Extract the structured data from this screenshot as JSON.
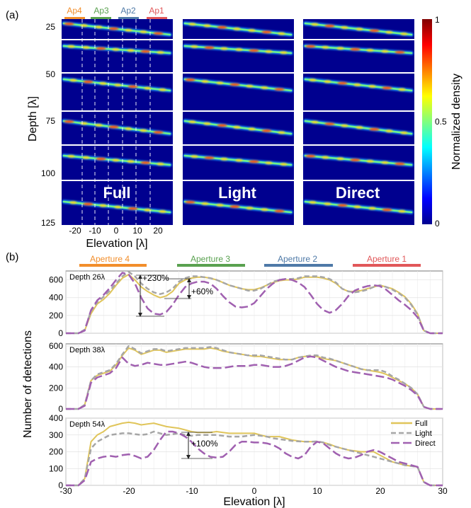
{
  "panel_a": {
    "label": "(a)",
    "ylabel": "Depth [λ]",
    "xlabel": "Elevation [λ]",
    "depth_ticks": [
      "25",
      "50",
      "75",
      "100",
      "125"
    ],
    "elev_ticks": [
      "-20",
      "-10",
      "0",
      "10",
      "20"
    ],
    "aperture_tags": [
      {
        "label": "Ap4",
        "color": "#f28e2b"
      },
      {
        "label": "Ap3",
        "color": "#59a14f"
      },
      {
        "label": "Ap2",
        "color": "#4e79a7"
      },
      {
        "label": "Ap1",
        "color": "#e15759"
      }
    ],
    "methods": [
      "Full",
      "Light",
      "Direct"
    ],
    "colorbar": {
      "label": "Normalized density",
      "ticks": [
        "1",
        "0.5",
        "0"
      ],
      "colormap": "jet"
    }
  },
  "panel_b": {
    "label": "(b)",
    "ylabel": "Number of detections",
    "xlabel": "Elevation [λ]",
    "apertures": [
      {
        "label": "Aperture 4",
        "color": "#f28e2b",
        "range": [
          -26,
          -15
        ]
      },
      {
        "label": "Aperture 3",
        "color": "#59a14f",
        "range": [
          -11,
          0
        ]
      },
      {
        "label": "Aperture 2",
        "color": "#4e79a7",
        "range": [
          1,
          12
        ]
      },
      {
        "label": "Aperture 1",
        "color": "#e15759",
        "range": [
          15,
          26
        ]
      }
    ],
    "legend": [
      {
        "name": "Full",
        "color": "#e0c55a",
        "dash": "solid"
      },
      {
        "name": "Light",
        "color": "#a6a6a6",
        "dash": "dashed"
      },
      {
        "name": "Direct",
        "color": "#a060b0",
        "dash": "longdash"
      }
    ],
    "annotations": [
      "+230%",
      "+60%",
      "+100%"
    ],
    "xticks": [
      "-30",
      "-20",
      "-10",
      "0",
      "10",
      "20",
      "30"
    ]
  },
  "chart_data": [
    {
      "type": "line",
      "title": "Depth 26λ",
      "xlabel": "Elevation [λ]",
      "ylabel": "Number of detections",
      "xlim": [
        -30,
        30
      ],
      "ylim": [
        0,
        700
      ],
      "yticks": [
        0,
        200,
        400,
        600
      ],
      "grid": true,
      "x": [
        -30,
        -28,
        -27,
        -26,
        -25,
        -24,
        -23,
        -22,
        -21,
        -20,
        -19,
        -18,
        -17,
        -16,
        -15,
        -14,
        -13,
        -12,
        -11,
        -10,
        -9,
        -8,
        -7,
        -6,
        -5,
        -4,
        -3,
        -2,
        -1,
        0,
        1,
        2,
        3,
        4,
        5,
        6,
        7,
        8,
        9,
        10,
        11,
        12,
        13,
        14,
        15,
        16,
        17,
        18,
        19,
        20,
        21,
        22,
        23,
        24,
        25,
        26,
        27,
        28,
        30
      ],
      "series": [
        {
          "name": "Full",
          "values": [
            0,
            0,
            30,
            220,
            330,
            380,
            450,
            540,
            620,
            660,
            600,
            520,
            470,
            430,
            400,
            420,
            470,
            560,
            600,
            620,
            630,
            630,
            620,
            600,
            570,
            540,
            520,
            500,
            490,
            490,
            510,
            540,
            570,
            590,
            600,
            600,
            610,
            630,
            630,
            630,
            620,
            600,
            560,
            500,
            470,
            470,
            480,
            500,
            520,
            540,
            520,
            500,
            460,
            410,
            330,
            220,
            30,
            0,
            0
          ]
        },
        {
          "name": "Light",
          "values": [
            0,
            0,
            40,
            250,
            350,
            410,
            480,
            560,
            640,
            690,
            640,
            560,
            500,
            460,
            440,
            460,
            500,
            580,
            620,
            640,
            640,
            630,
            620,
            600,
            570,
            540,
            520,
            500,
            480,
            480,
            500,
            540,
            580,
            600,
            610,
            610,
            620,
            640,
            640,
            640,
            630,
            610,
            570,
            500,
            470,
            460,
            470,
            490,
            520,
            540,
            520,
            490,
            450,
            400,
            320,
            210,
            30,
            0,
            0
          ]
        },
        {
          "name": "Direct",
          "values": [
            0,
            0,
            30,
            260,
            370,
            430,
            510,
            600,
            680,
            660,
            560,
            400,
            280,
            220,
            210,
            240,
            320,
            430,
            520,
            560,
            580,
            580,
            560,
            500,
            420,
            350,
            300,
            290,
            300,
            340,
            420,
            500,
            560,
            600,
            610,
            600,
            570,
            520,
            430,
            330,
            260,
            230,
            260,
            330,
            420,
            480,
            510,
            530,
            540,
            530,
            490,
            430,
            370,
            320,
            260,
            180,
            30,
            0,
            0
          ]
        }
      ]
    },
    {
      "type": "line",
      "title": "Depth 38λ",
      "xlabel": "Elevation [λ]",
      "ylabel": "Number of detections",
      "xlim": [
        -30,
        30
      ],
      "ylim": [
        0,
        620
      ],
      "yticks": [
        0,
        200,
        400,
        600
      ],
      "grid": true,
      "x": [
        -30,
        -28,
        -27,
        -26,
        -25,
        -24,
        -23,
        -22,
        -21,
        -20,
        -19,
        -18,
        -17,
        -16,
        -15,
        -14,
        -13,
        -12,
        -11,
        -10,
        -9,
        -8,
        -7,
        -6,
        -5,
        -4,
        -3,
        -2,
        -1,
        0,
        1,
        2,
        3,
        4,
        5,
        6,
        7,
        8,
        9,
        10,
        11,
        12,
        13,
        14,
        15,
        16,
        17,
        18,
        19,
        20,
        21,
        22,
        23,
        24,
        25,
        26,
        27,
        28,
        30
      ],
      "series": [
        {
          "name": "Full",
          "values": [
            0,
            0,
            40,
            270,
            320,
            340,
            360,
            420,
            510,
            580,
            560,
            520,
            540,
            560,
            560,
            540,
            550,
            560,
            570,
            570,
            570,
            570,
            580,
            570,
            550,
            540,
            530,
            520,
            510,
            500,
            500,
            490,
            480,
            470,
            470,
            470,
            490,
            500,
            500,
            500,
            480,
            470,
            460,
            440,
            420,
            400,
            380,
            370,
            360,
            350,
            330,
            300,
            270,
            240,
            200,
            140,
            20,
            0,
            0
          ]
        },
        {
          "name": "Light",
          "values": [
            0,
            0,
            40,
            270,
            330,
            350,
            370,
            430,
            520,
            600,
            570,
            530,
            550,
            570,
            570,
            550,
            560,
            570,
            580,
            580,
            580,
            580,
            590,
            580,
            560,
            540,
            530,
            520,
            510,
            510,
            510,
            500,
            490,
            480,
            470,
            470,
            490,
            500,
            510,
            510,
            490,
            480,
            460,
            440,
            420,
            400,
            380,
            370,
            370,
            370,
            350,
            310,
            280,
            240,
            200,
            140,
            20,
            0,
            0
          ]
        },
        {
          "name": "Direct",
          "values": [
            0,
            0,
            30,
            250,
            300,
            320,
            340,
            390,
            490,
            430,
            410,
            420,
            440,
            430,
            420,
            420,
            430,
            440,
            450,
            440,
            420,
            400,
            390,
            390,
            390,
            400,
            410,
            410,
            410,
            420,
            420,
            410,
            400,
            400,
            410,
            430,
            460,
            490,
            500,
            490,
            460,
            430,
            400,
            380,
            360,
            350,
            340,
            330,
            320,
            310,
            300,
            280,
            250,
            220,
            180,
            130,
            20,
            0,
            0
          ]
        }
      ]
    },
    {
      "type": "line",
      "title": "Depth 54λ",
      "xlabel": "Elevation [λ]",
      "ylabel": "Number of detections",
      "xlim": [
        -30,
        30
      ],
      "ylim": [
        0,
        400
      ],
      "yticks": [
        0,
        100,
        200,
        300,
        400
      ],
      "grid": true,
      "x": [
        -30,
        -28,
        -27,
        -26,
        -25,
        -24,
        -23,
        -22,
        -21,
        -20,
        -19,
        -18,
        -17,
        -16,
        -15,
        -14,
        -13,
        -12,
        -11,
        -10,
        -9,
        -8,
        -7,
        -6,
        -5,
        -4,
        -3,
        -2,
        -1,
        0,
        1,
        2,
        3,
        4,
        5,
        6,
        7,
        8,
        9,
        10,
        11,
        12,
        13,
        14,
        15,
        16,
        17,
        18,
        19,
        20,
        21,
        22,
        23,
        24,
        25,
        26,
        27,
        28,
        30
      ],
      "series": [
        {
          "name": "Full",
          "values": [
            0,
            0,
            40,
            260,
            300,
            320,
            350,
            360,
            370,
            375,
            370,
            360,
            365,
            370,
            360,
            350,
            345,
            340,
            330,
            320,
            315,
            315,
            315,
            320,
            315,
            310,
            310,
            310,
            310,
            310,
            300,
            290,
            290,
            290,
            280,
            270,
            265,
            260,
            260,
            260,
            255,
            245,
            230,
            220,
            210,
            205,
            200,
            200,
            200,
            180,
            160,
            140,
            130,
            120,
            115,
            110,
            20,
            0,
            0
          ]
        },
        {
          "name": "Light",
          "values": [
            0,
            0,
            40,
            220,
            260,
            280,
            300,
            305,
            310,
            310,
            305,
            300,
            305,
            320,
            310,
            300,
            305,
            310,
            300,
            295,
            300,
            300,
            300,
            300,
            295,
            290,
            290,
            290,
            295,
            300,
            295,
            290,
            280,
            275,
            270,
            265,
            262,
            260,
            260,
            262,
            255,
            240,
            230,
            220,
            210,
            200,
            190,
            180,
            170,
            160,
            150,
            140,
            130,
            120,
            115,
            110,
            20,
            0,
            0
          ]
        },
        {
          "name": "Direct",
          "values": [
            0,
            0,
            30,
            140,
            160,
            170,
            175,
            170,
            180,
            185,
            175,
            160,
            170,
            210,
            270,
            320,
            320,
            310,
            290,
            260,
            220,
            190,
            170,
            165,
            170,
            200,
            240,
            260,
            260,
            255,
            255,
            250,
            240,
            220,
            190,
            170,
            160,
            180,
            230,
            260,
            250,
            220,
            190,
            170,
            160,
            165,
            180,
            200,
            210,
            200,
            180,
            160,
            140,
            130,
            120,
            110,
            20,
            0,
            0
          ]
        }
      ]
    }
  ]
}
